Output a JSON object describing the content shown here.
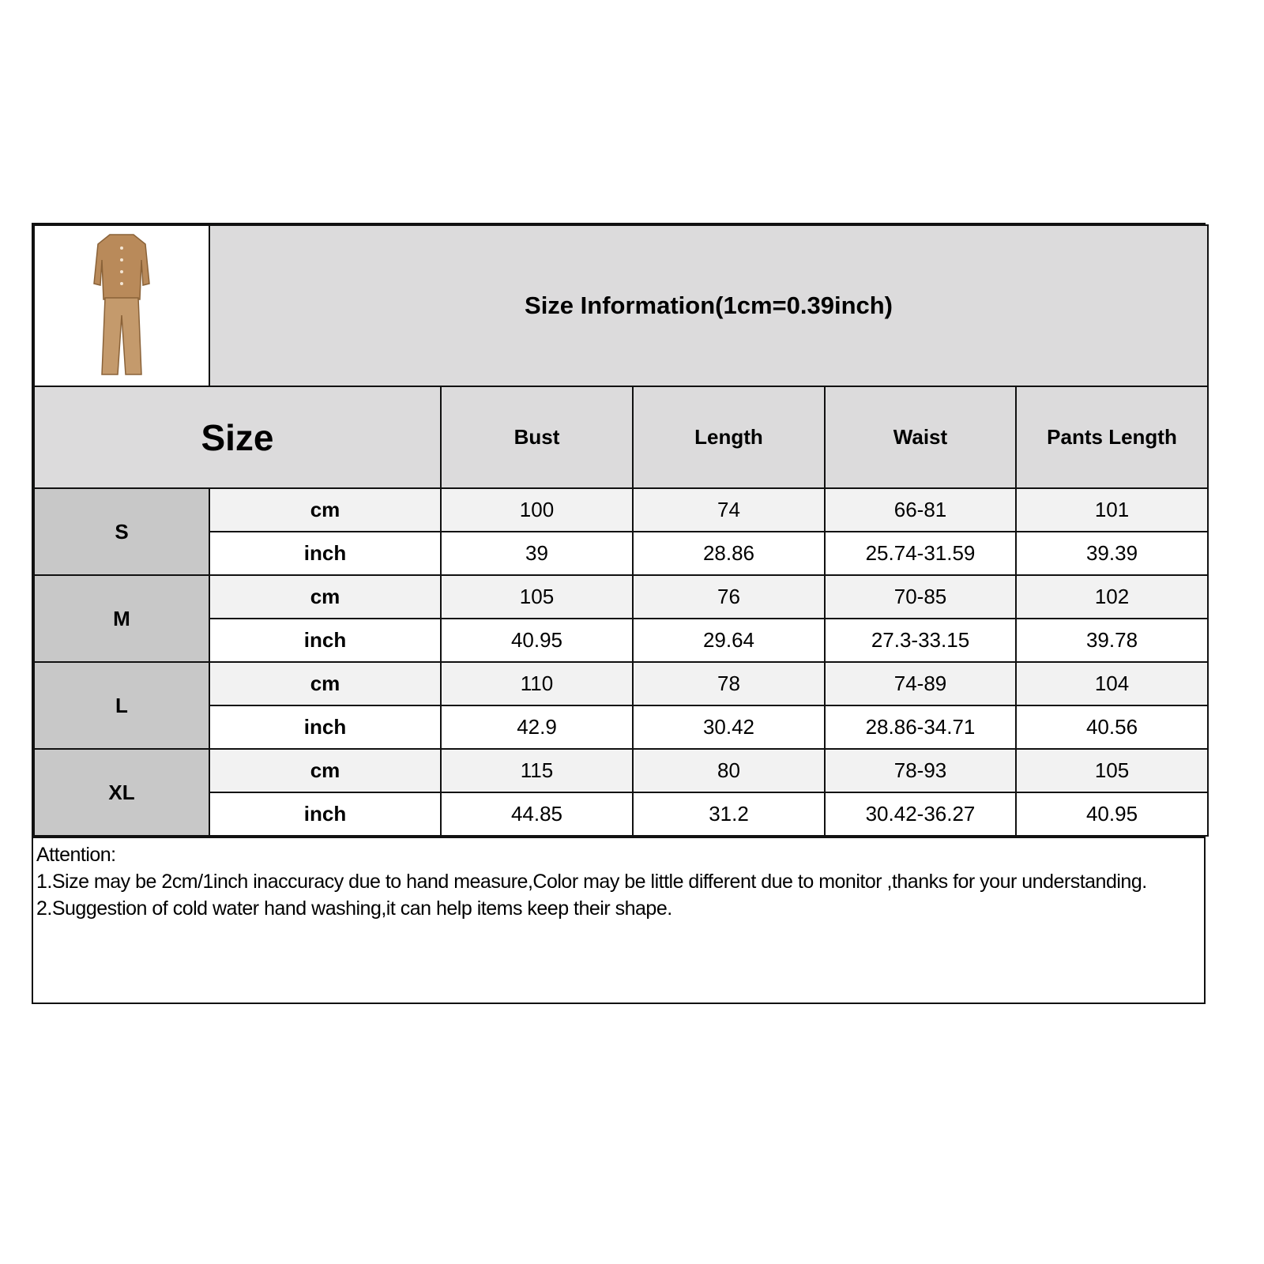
{
  "title": "Size Information(1cm=0.39inch)",
  "product_image": {
    "icon": "pajama-set-image",
    "color": "#b98a5a"
  },
  "headers": {
    "size": "Size",
    "columns": [
      "Bust",
      "Length",
      "Waist",
      "Pants Length"
    ]
  },
  "rows": [
    {
      "size": "S",
      "cm": {
        "unit": "cm",
        "values": [
          "100",
          "74",
          "66-81",
          "101"
        ]
      },
      "inch": {
        "unit": "inch",
        "values": [
          "39",
          "28.86",
          "25.74-31.59",
          "39.39"
        ]
      }
    },
    {
      "size": "M",
      "cm": {
        "unit": "cm",
        "values": [
          "105",
          "76",
          "70-85",
          "102"
        ]
      },
      "inch": {
        "unit": "inch",
        "values": [
          "40.95",
          "29.64",
          "27.3-33.15",
          "39.78"
        ]
      }
    },
    {
      "size": "L",
      "cm": {
        "unit": "cm",
        "values": [
          "110",
          "78",
          "74-89",
          "104"
        ]
      },
      "inch": {
        "unit": "inch",
        "values": [
          "42.9",
          "30.42",
          "28.86-34.71",
          "40.56"
        ]
      }
    },
    {
      "size": "XL",
      "cm": {
        "unit": "cm",
        "values": [
          "115",
          "80",
          "78-93",
          "105"
        ]
      },
      "inch": {
        "unit": "inch",
        "values": [
          "44.85",
          "31.2",
          "30.42-36.27",
          "40.95"
        ]
      }
    }
  ],
  "notes": {
    "heading": "Attention:",
    "items": [
      "1.Size may be 2cm/1inch inaccuracy due to hand measure,Color may be little different due to monitor ,thanks for your understanding.",
      "2.Suggestion of cold water hand washing,it can help items keep their shape."
    ]
  }
}
